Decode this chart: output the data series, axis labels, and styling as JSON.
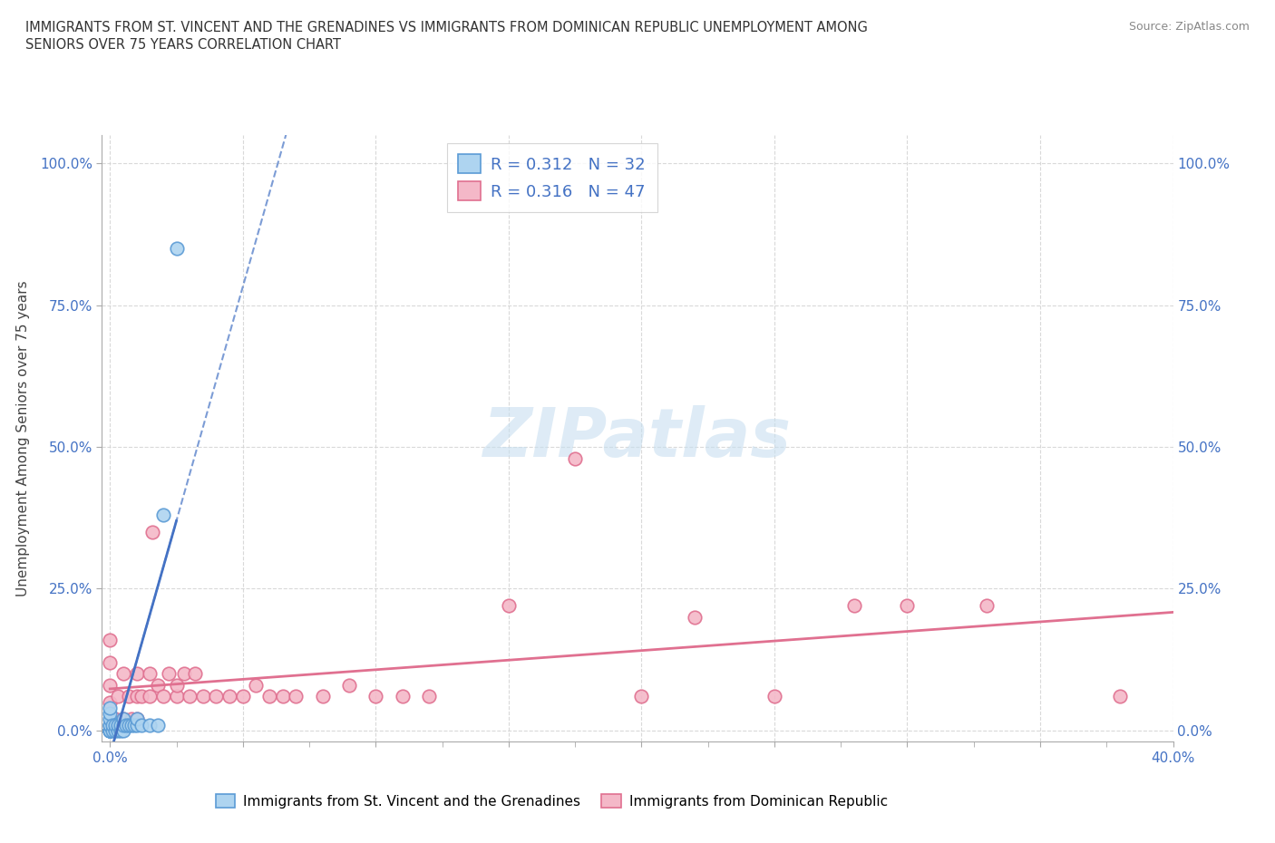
{
  "title_line1": "IMMIGRANTS FROM ST. VINCENT AND THE GRENADINES VS IMMIGRANTS FROM DOMINICAN REPUBLIC UNEMPLOYMENT AMONG",
  "title_line2": "SENIORS OVER 75 YEARS CORRELATION CHART",
  "source": "Source: ZipAtlas.com",
  "ylabel": "Unemployment Among Seniors over 75 years",
  "series1_name": "Immigrants from St. Vincent and the Grenadines",
  "series1_color": "#aed4f0",
  "series1_edge_color": "#5b9bd5",
  "series1_line_color": "#4472c4",
  "series1_R": "0.312",
  "series1_N": "32",
  "series2_name": "Immigrants from Dominican Republic",
  "series2_color": "#f4b8c8",
  "series2_edge_color": "#e07090",
  "series2_line_color": "#e07090",
  "series2_R": "0.316",
  "series2_N": "47",
  "stat_text_color": "#4472c4",
  "background_color": "#ffffff",
  "watermark_color": "#c8dff0",
  "series1_x": [
    0.0,
    0.0,
    0.0,
    0.0,
    0.0,
    0.0,
    0.0,
    0.0,
    0.0,
    0.0,
    0.001,
    0.001,
    0.002,
    0.002,
    0.003,
    0.003,
    0.004,
    0.004,
    0.005,
    0.005,
    0.005,
    0.006,
    0.007,
    0.008,
    0.009,
    0.01,
    0.01,
    0.012,
    0.015,
    0.018,
    0.02,
    0.025
  ],
  "series1_y": [
    0.0,
    0.0,
    0.0,
    0.0,
    0.0,
    0.01,
    0.01,
    0.02,
    0.03,
    0.04,
    0.0,
    0.01,
    0.0,
    0.01,
    0.0,
    0.01,
    0.0,
    0.01,
    0.0,
    0.01,
    0.02,
    0.01,
    0.01,
    0.01,
    0.01,
    0.01,
    0.02,
    0.01,
    0.01,
    0.01,
    0.38,
    0.85
  ],
  "series2_x": [
    0.0,
    0.0,
    0.0,
    0.0,
    0.002,
    0.003,
    0.005,
    0.005,
    0.007,
    0.008,
    0.01,
    0.01,
    0.01,
    0.012,
    0.015,
    0.015,
    0.016,
    0.018,
    0.02,
    0.022,
    0.025,
    0.025,
    0.028,
    0.03,
    0.032,
    0.035,
    0.04,
    0.045,
    0.05,
    0.055,
    0.06,
    0.065,
    0.07,
    0.08,
    0.09,
    0.1,
    0.11,
    0.12,
    0.15,
    0.175,
    0.2,
    0.22,
    0.25,
    0.28,
    0.3,
    0.33,
    0.38
  ],
  "series2_y": [
    0.05,
    0.08,
    0.12,
    0.16,
    0.02,
    0.06,
    0.02,
    0.1,
    0.06,
    0.02,
    0.02,
    0.06,
    0.1,
    0.06,
    0.06,
    0.1,
    0.35,
    0.08,
    0.06,
    0.1,
    0.06,
    0.08,
    0.1,
    0.06,
    0.1,
    0.06,
    0.06,
    0.06,
    0.06,
    0.08,
    0.06,
    0.06,
    0.06,
    0.06,
    0.08,
    0.06,
    0.06,
    0.06,
    0.22,
    0.48,
    0.06,
    0.2,
    0.06,
    0.22,
    0.22,
    0.22,
    0.06
  ]
}
